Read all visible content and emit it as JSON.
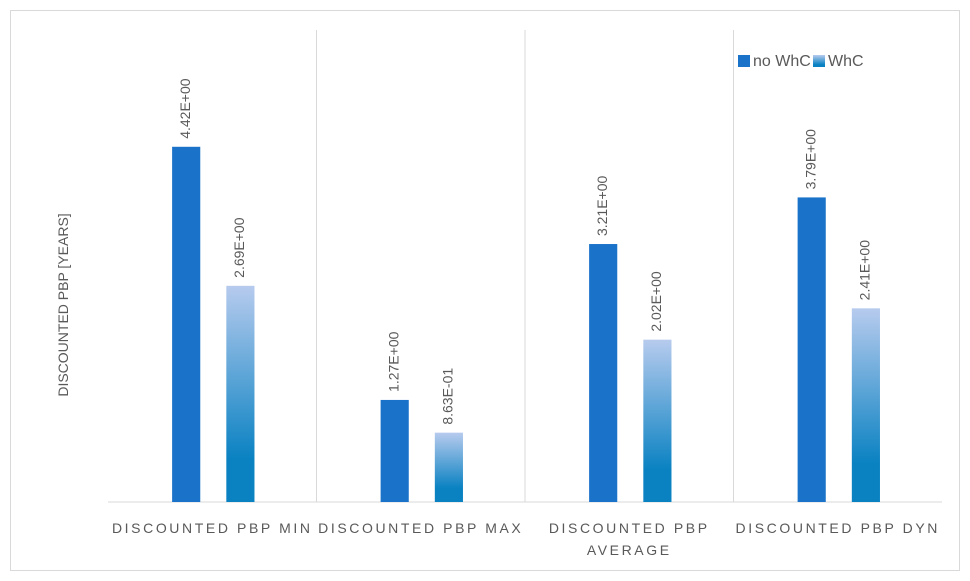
{
  "chart_data": {
    "type": "bar",
    "ylabel": "DISCOUNTED PBP [YEARS]",
    "categories": [
      "DISCOUNTED PBP MIN",
      "DISCOUNTED PBP MAX",
      "DISCOUNTED PBP AVERAGE",
      "DISCOUNTED PBP DYN"
    ],
    "series": [
      {
        "name": "no WhC",
        "color": "#1a72c9",
        "values": [
          4.42,
          1.27,
          3.21,
          3.79
        ],
        "value_labels": [
          "4.42E+00",
          "1.27E+00",
          "3.21E+00",
          "3.79E+00"
        ]
      },
      {
        "name": "WhC",
        "color": "#0a82c2",
        "gradient_top": "#b7cbee",
        "values": [
          2.69,
          0.863,
          2.02,
          2.41
        ],
        "value_labels": [
          "2.69E+00",
          "8.63E-01",
          "2.02E+00",
          "2.41E+00"
        ]
      }
    ],
    "ylim": [
      0,
      5.5
    ],
    "legend": "upper right"
  }
}
